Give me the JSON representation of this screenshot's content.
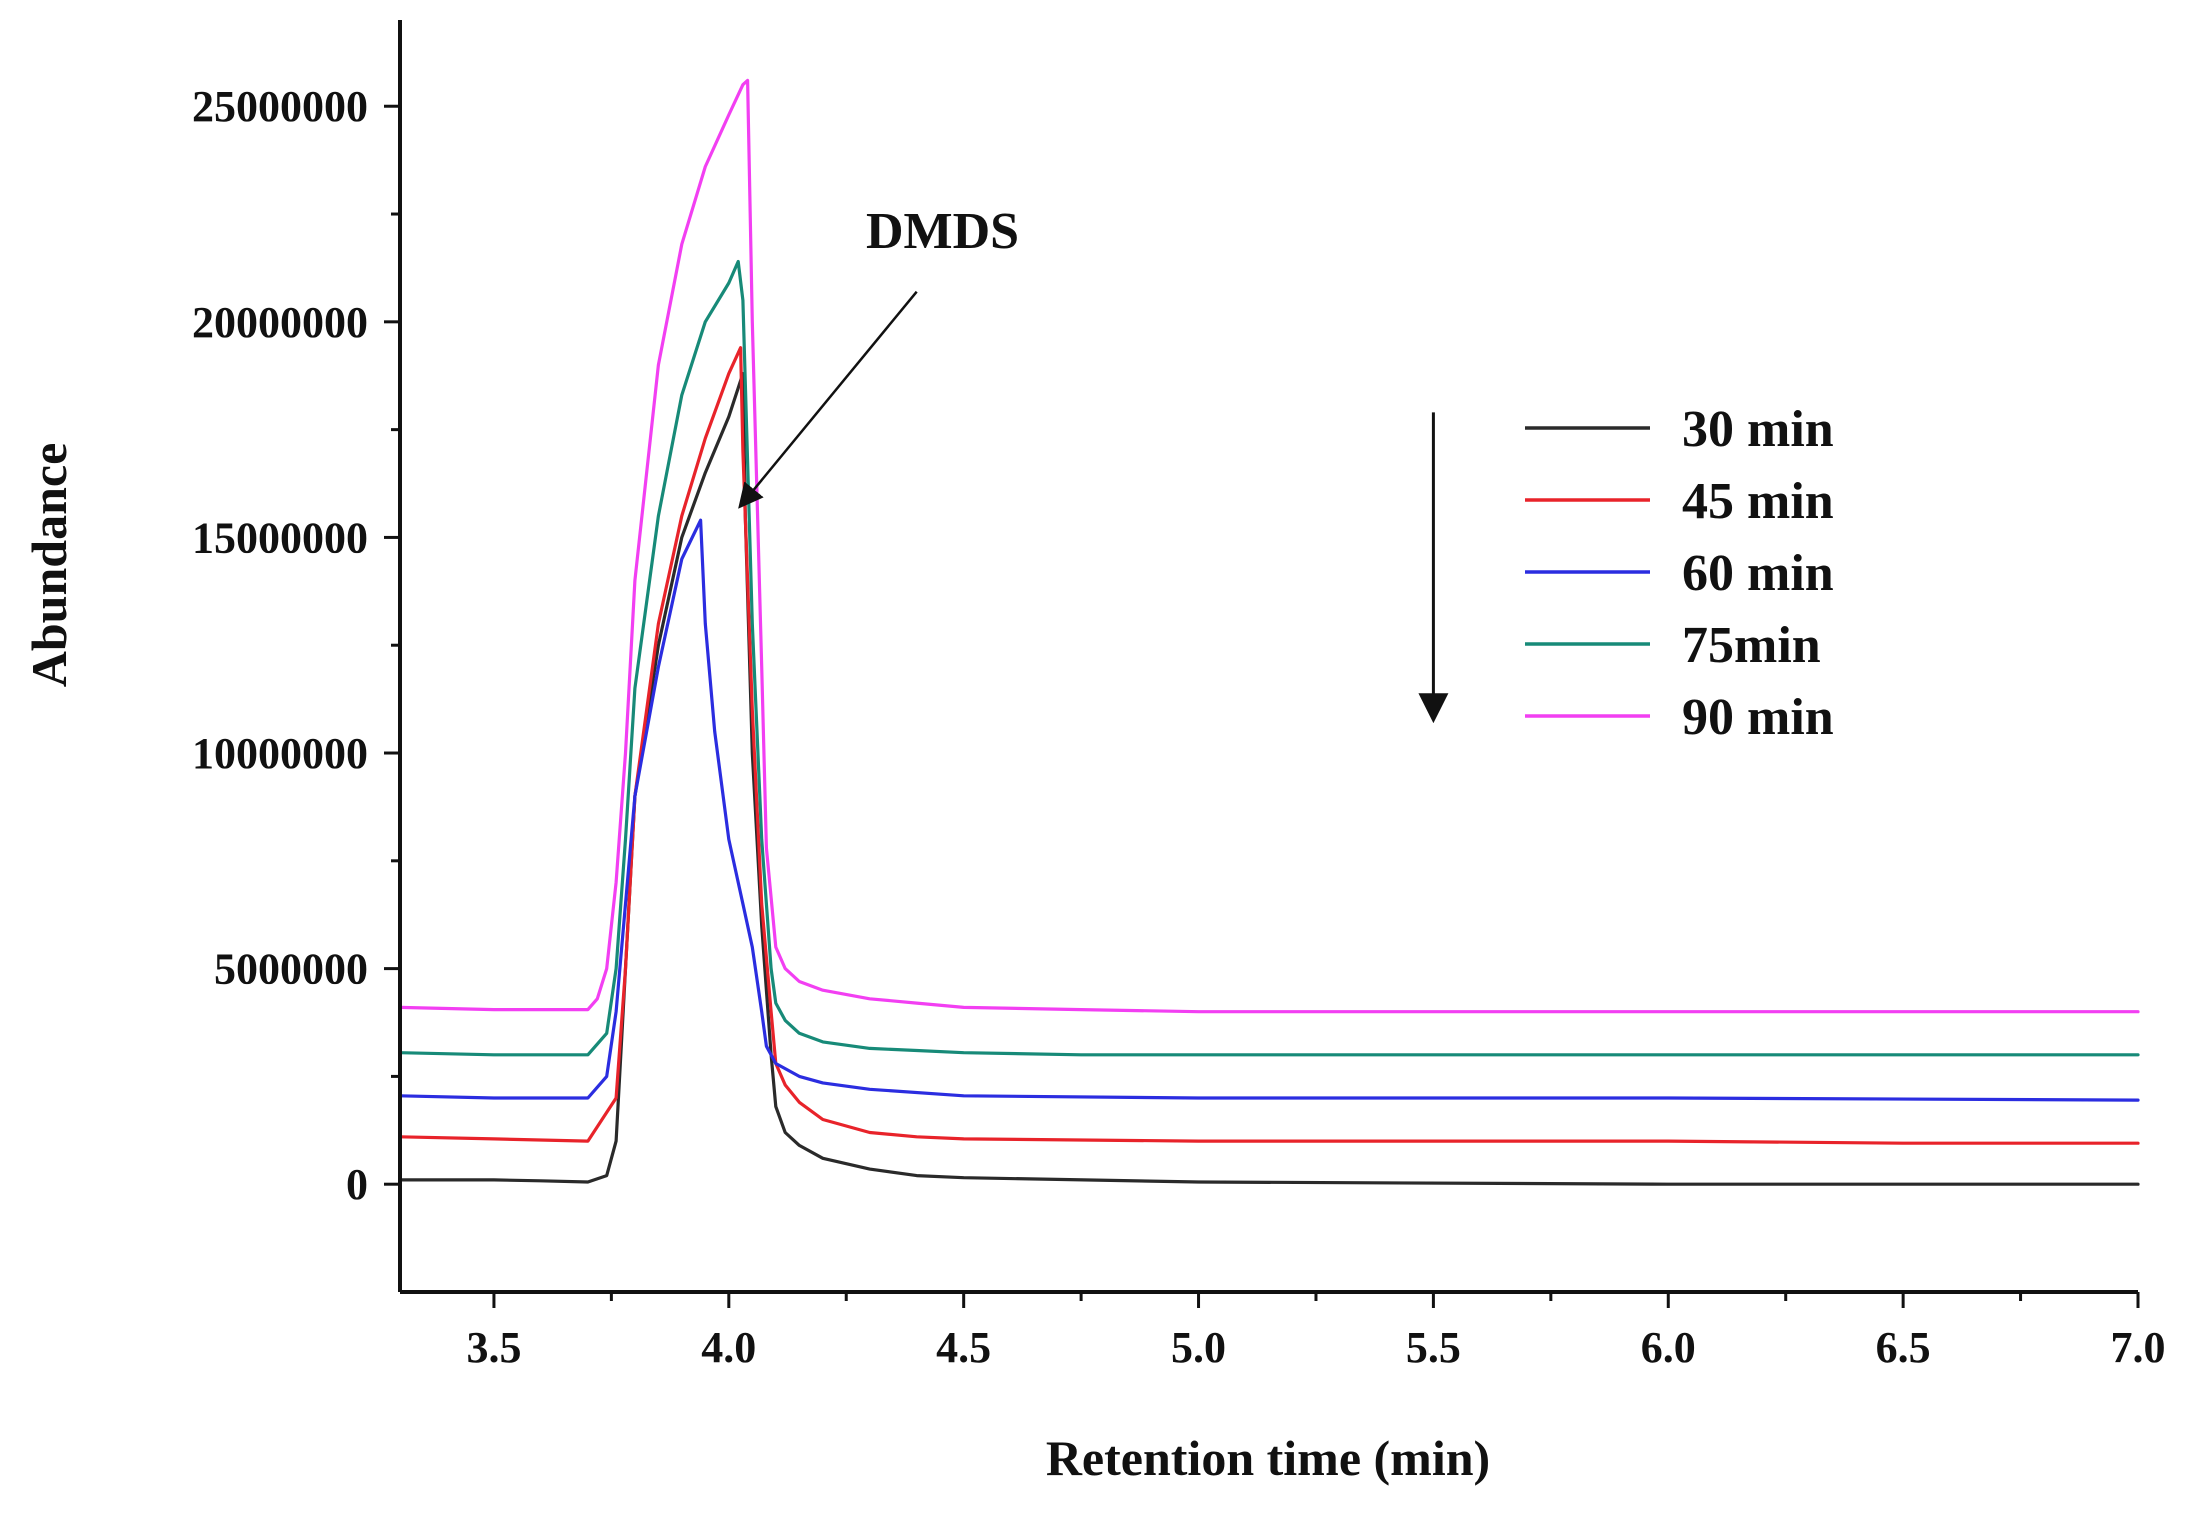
{
  "chart_data": {
    "type": "line",
    "xlabel": "Retention time (min)",
    "ylabel": "Abundance",
    "xlim": [
      3.3,
      7.0
    ],
    "ylim": [
      -2500000,
      27000000
    ],
    "x_ticks": [
      3.5,
      4.0,
      4.5,
      5.0,
      5.5,
      6.0,
      6.5,
      7.0
    ],
    "x_tick_labels": [
      "3.5",
      "4.0",
      "4.5",
      "5.0",
      "5.5",
      "6.0",
      "6.5",
      "7.0"
    ],
    "x_minor_ticks": [
      3.75,
      4.25,
      4.75,
      5.25,
      5.75,
      6.25,
      6.75
    ],
    "y_ticks": [
      0,
      5000000,
      10000000,
      15000000,
      20000000,
      25000000
    ],
    "y_tick_labels": [
      "0",
      "5000000",
      "10000000",
      "15000000",
      "20000000",
      "25000000"
    ],
    "y_minor_ticks": [
      2500000,
      7500000,
      12500000,
      17500000,
      22500000
    ],
    "legend_position": "right",
    "annotation": {
      "text": "DMDS",
      "arrow_from": [
        4.4,
        20700000
      ],
      "arrow_to": [
        4.03,
        15800000
      ]
    },
    "trend_arrow": {
      "x": 5.5,
      "y_from": 17900000,
      "y_to": 10900000
    },
    "series": [
      {
        "name": "30 min",
        "color": "#2a2a2a",
        "x": [
          3.3,
          3.5,
          3.6,
          3.7,
          3.74,
          3.76,
          3.78,
          3.8,
          3.85,
          3.9,
          3.95,
          4.0,
          4.03,
          4.035,
          4.05,
          4.07,
          4.09,
          4.1,
          4.12,
          4.15,
          4.2,
          4.3,
          4.4,
          4.5,
          5.0,
          6.0,
          7.0
        ],
        "y": [
          100000,
          100000,
          80000,
          50000,
          200000,
          1000000,
          5000000,
          9000000,
          12500000,
          15000000,
          16500000,
          17800000,
          18800000,
          15500000,
          10000000,
          6000000,
          3000000,
          1800000,
          1200000,
          900000,
          600000,
          350000,
          200000,
          150000,
          50000,
          0,
          0
        ]
      },
      {
        "name": "45 min",
        "color": "#e8232a",
        "x": [
          3.3,
          3.5,
          3.7,
          3.76,
          3.78,
          3.8,
          3.85,
          3.9,
          3.95,
          4.0,
          4.025,
          4.03,
          4.05,
          4.07,
          4.09,
          4.1,
          4.12,
          4.15,
          4.2,
          4.3,
          4.4,
          4.5,
          5.0,
          6.0,
          6.5,
          7.0
        ],
        "y": [
          1100000,
          1050000,
          1000000,
          2000000,
          5000000,
          9000000,
          13000000,
          15500000,
          17300000,
          18800000,
          19400000,
          17000000,
          11000000,
          6500000,
          4000000,
          2800000,
          2300000,
          1900000,
          1500000,
          1200000,
          1100000,
          1050000,
          1000000,
          1000000,
          950000,
          950000
        ]
      },
      {
        "name": "60 min",
        "color": "#2b2de0",
        "x": [
          3.3,
          3.5,
          3.7,
          3.74,
          3.76,
          3.78,
          3.8,
          3.85,
          3.9,
          3.94,
          3.95,
          3.97,
          4.0,
          4.03,
          4.05,
          4.07,
          4.08,
          4.1,
          4.15,
          4.2,
          4.3,
          4.5,
          5.0,
          6.0,
          7.0
        ],
        "y": [
          2050000,
          2000000,
          2000000,
          2500000,
          4000000,
          6500000,
          9000000,
          12000000,
          14500000,
          15400000,
          13000000,
          10500000,
          8000000,
          6500000,
          5500000,
          4000000,
          3200000,
          2800000,
          2500000,
          2350000,
          2200000,
          2050000,
          2000000,
          2000000,
          1950000
        ]
      },
      {
        "name": "75min",
        "color": "#178a78",
        "x": [
          3.3,
          3.5,
          3.7,
          3.74,
          3.76,
          3.78,
          3.8,
          3.85,
          3.9,
          3.95,
          4.0,
          4.02,
          4.03,
          4.05,
          4.07,
          4.09,
          4.1,
          4.12,
          4.15,
          4.2,
          4.3,
          4.4,
          4.5,
          4.75,
          5.0,
          6.0,
          7.0
        ],
        "y": [
          3050000,
          3000000,
          3000000,
          3500000,
          5000000,
          8000000,
          11500000,
          15500000,
          18300000,
          20000000,
          20900000,
          21400000,
          20500000,
          13000000,
          8000000,
          5000000,
          4200000,
          3800000,
          3500000,
          3300000,
          3150000,
          3100000,
          3050000,
          3000000,
          3000000,
          3000000,
          3000000
        ]
      },
      {
        "name": "90 min",
        "color": "#f23ff2",
        "x": [
          3.3,
          3.5,
          3.7,
          3.72,
          3.74,
          3.76,
          3.78,
          3.8,
          3.85,
          3.9,
          3.95,
          4.0,
          4.03,
          4.04,
          4.05,
          4.07,
          4.08,
          4.1,
          4.12,
          4.15,
          4.2,
          4.3,
          4.4,
          4.5,
          4.75,
          5.0,
          6.0,
          7.0
        ],
        "y": [
          4100000,
          4050000,
          4050000,
          4300000,
          5000000,
          7000000,
          10000000,
          14000000,
          19000000,
          21800000,
          23600000,
          24800000,
          25500000,
          25600000,
          20000000,
          12000000,
          7800000,
          5500000,
          5000000,
          4700000,
          4500000,
          4300000,
          4200000,
          4100000,
          4050000,
          4000000,
          4000000,
          4000000
        ]
      }
    ]
  }
}
